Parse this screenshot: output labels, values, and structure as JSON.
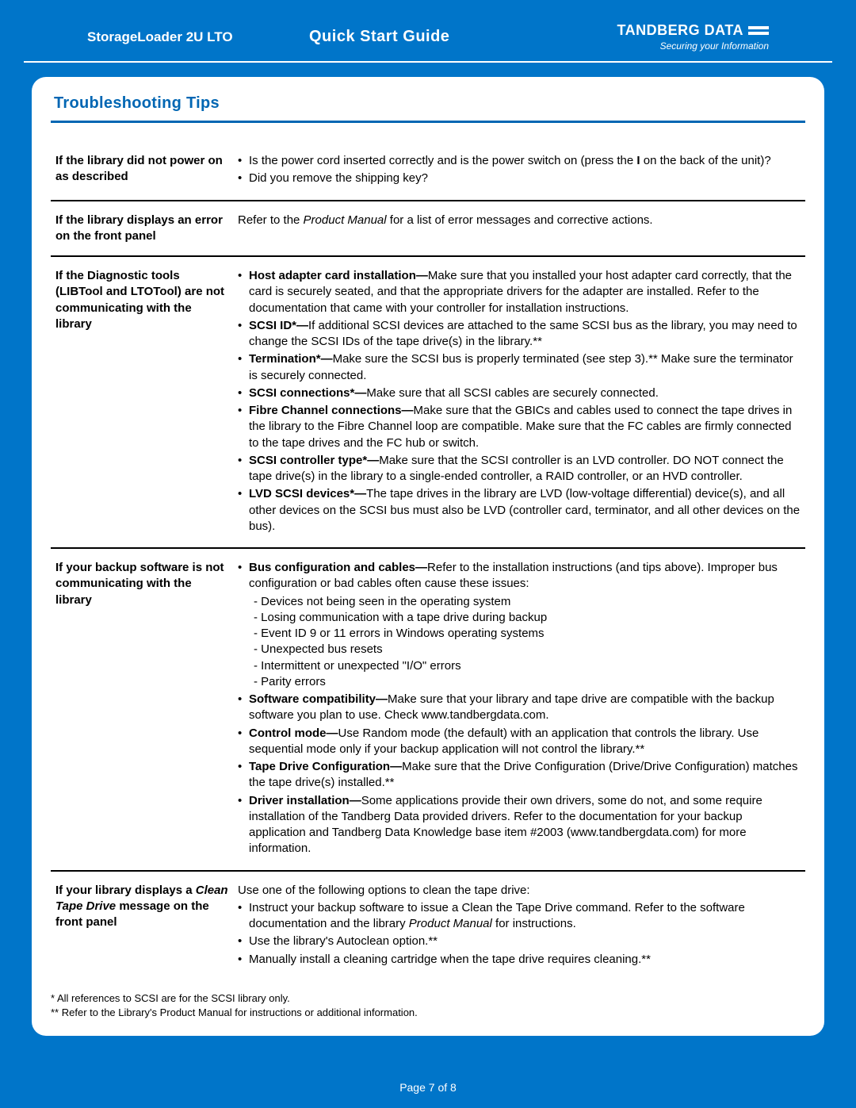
{
  "header": {
    "product": "StorageLoader 2U LTO",
    "title": "Quick Start Guide",
    "brand": "TANDBERG DATA",
    "tagline": "Securing your Information"
  },
  "section_title": "Troubleshooting Tips",
  "rows": [
    {
      "issue_html": "If the library did not power on as described",
      "body_html": "<ul class='bullets'><li>Is the power cord inserted correctly and is the power switch on (press the <b>I</b> on the back of the unit)?</li><li>Did you remove the shipping key?</li></ul>"
    },
    {
      "issue_html": "If the library displays an error on the front panel",
      "body_html": "Refer to the <em class='pm'>Product Manual</em> for a list of error messages and corrective actions."
    },
    {
      "issue_html": "If the Diagnostic tools (LIBTool and LTOTool) are not communicating with the library",
      "body_html": "<ul class='bullets'><li><span class='lead'>Host adapter card installation—</span>Make sure that you installed your host adapter card correctly, that the card is securely seated, and that the appropriate drivers for the adapter are installed. Refer to the documentation that came with your controller for installation instructions.</li><li><span class='lead'>SCSI ID*—</span>If additional SCSI devices are attached to the same SCSI bus as the library, you may need to change the SCSI IDs of the tape drive(s) in the library.**</li><li><span class='lead'>Termination*—</span>Make sure the SCSI bus is properly terminated (see step 3).** Make sure the terminator is securely connected.</li><li><span class='lead'>SCSI connections*—</span>Make sure that all SCSI cables are securely connected.</li><li><span class='lead'>Fibre Channel connections—</span>Make sure that the GBICs and cables used to connect the tape drives in the library to the Fibre Channel loop are compatible. Make sure that the FC cables are firmly connected to the tape drives and the FC hub or switch.</li><li><span class='lead'>SCSI controller type*—</span>Make sure that the SCSI controller is an LVD controller. DO NOT connect the tape drive(s) in the library to a single-ended controller, a RAID controller, or an HVD controller.</li><li><span class='lead'>LVD SCSI devices*—</span>The tape drives in the library are LVD (low-voltage differential) device(s), and all other devices on the SCSI bus must also be LVD (controller card, terminator, and all other devices on the bus).</li></ul>"
    },
    {
      "issue_html": "If your backup software is not communicating with the library",
      "body_html": "<ul class='bullets'><li><span class='lead'>Bus configuration and cables—</span>Refer to the installation instructions (and tips above). Improper bus configuration or bad cables often cause these issues:<ul class='sub'><li>Devices not being seen in the operating system</li><li>Losing communication with a tape drive during backup</li><li>Event ID 9 or 11 errors in Windows operating systems</li><li>Unexpected bus resets</li><li>Intermittent or unexpected \"I/O\" errors</li><li>Parity errors</li></ul></li><li><span class='lead'>Software compatibility—</span>Make sure that your library and tape drive are compatible with the backup software you plan to use. Check www.tandbergdata.com.</li><li><span class='lead'>Control mode—</span>Use Random mode (the default) with an application that controls the library. Use sequential mode only if your backup application will not control the library.**</li><li><span class='lead'>Tape Drive Configuration—</span>Make sure that the Drive Configuration (Drive/Drive Configuration) matches the tape drive(s) installed.**</li><li><span class='lead'>Driver installation—</span>Some applications provide their own drivers, some do not, and some require installation of the Tandberg Data provided drivers. Refer to the documentation for your backup application and Tandberg Data Knowledge base item #2003 (www.tandbergdata.com) for more information.</li></ul>"
    },
    {
      "issue_html": "If your library displays a <span class='ital'>Clean Tape Drive</span> message on the front panel",
      "body_html": "<div class='intro-line'>Use one of the following options to clean the tape drive:</div><ul class='bullets'><li>Instruct your backup software to issue a Clean the Tape Drive command. Refer to the software documentation and the library <em class='pm'>Product Manual</em> for instructions.</li><li>Use the library's Autoclean option.**</li><li>Manually install a cleaning cartridge when the tape drive requires cleaning.**</li></ul>"
    }
  ],
  "footnotes": {
    "f1": "* All references to SCSI are for the SCSI library only.",
    "f2": "** Refer to the Library's Product Manual for instructions or additional information."
  },
  "page_label": "Page 7 of 8"
}
